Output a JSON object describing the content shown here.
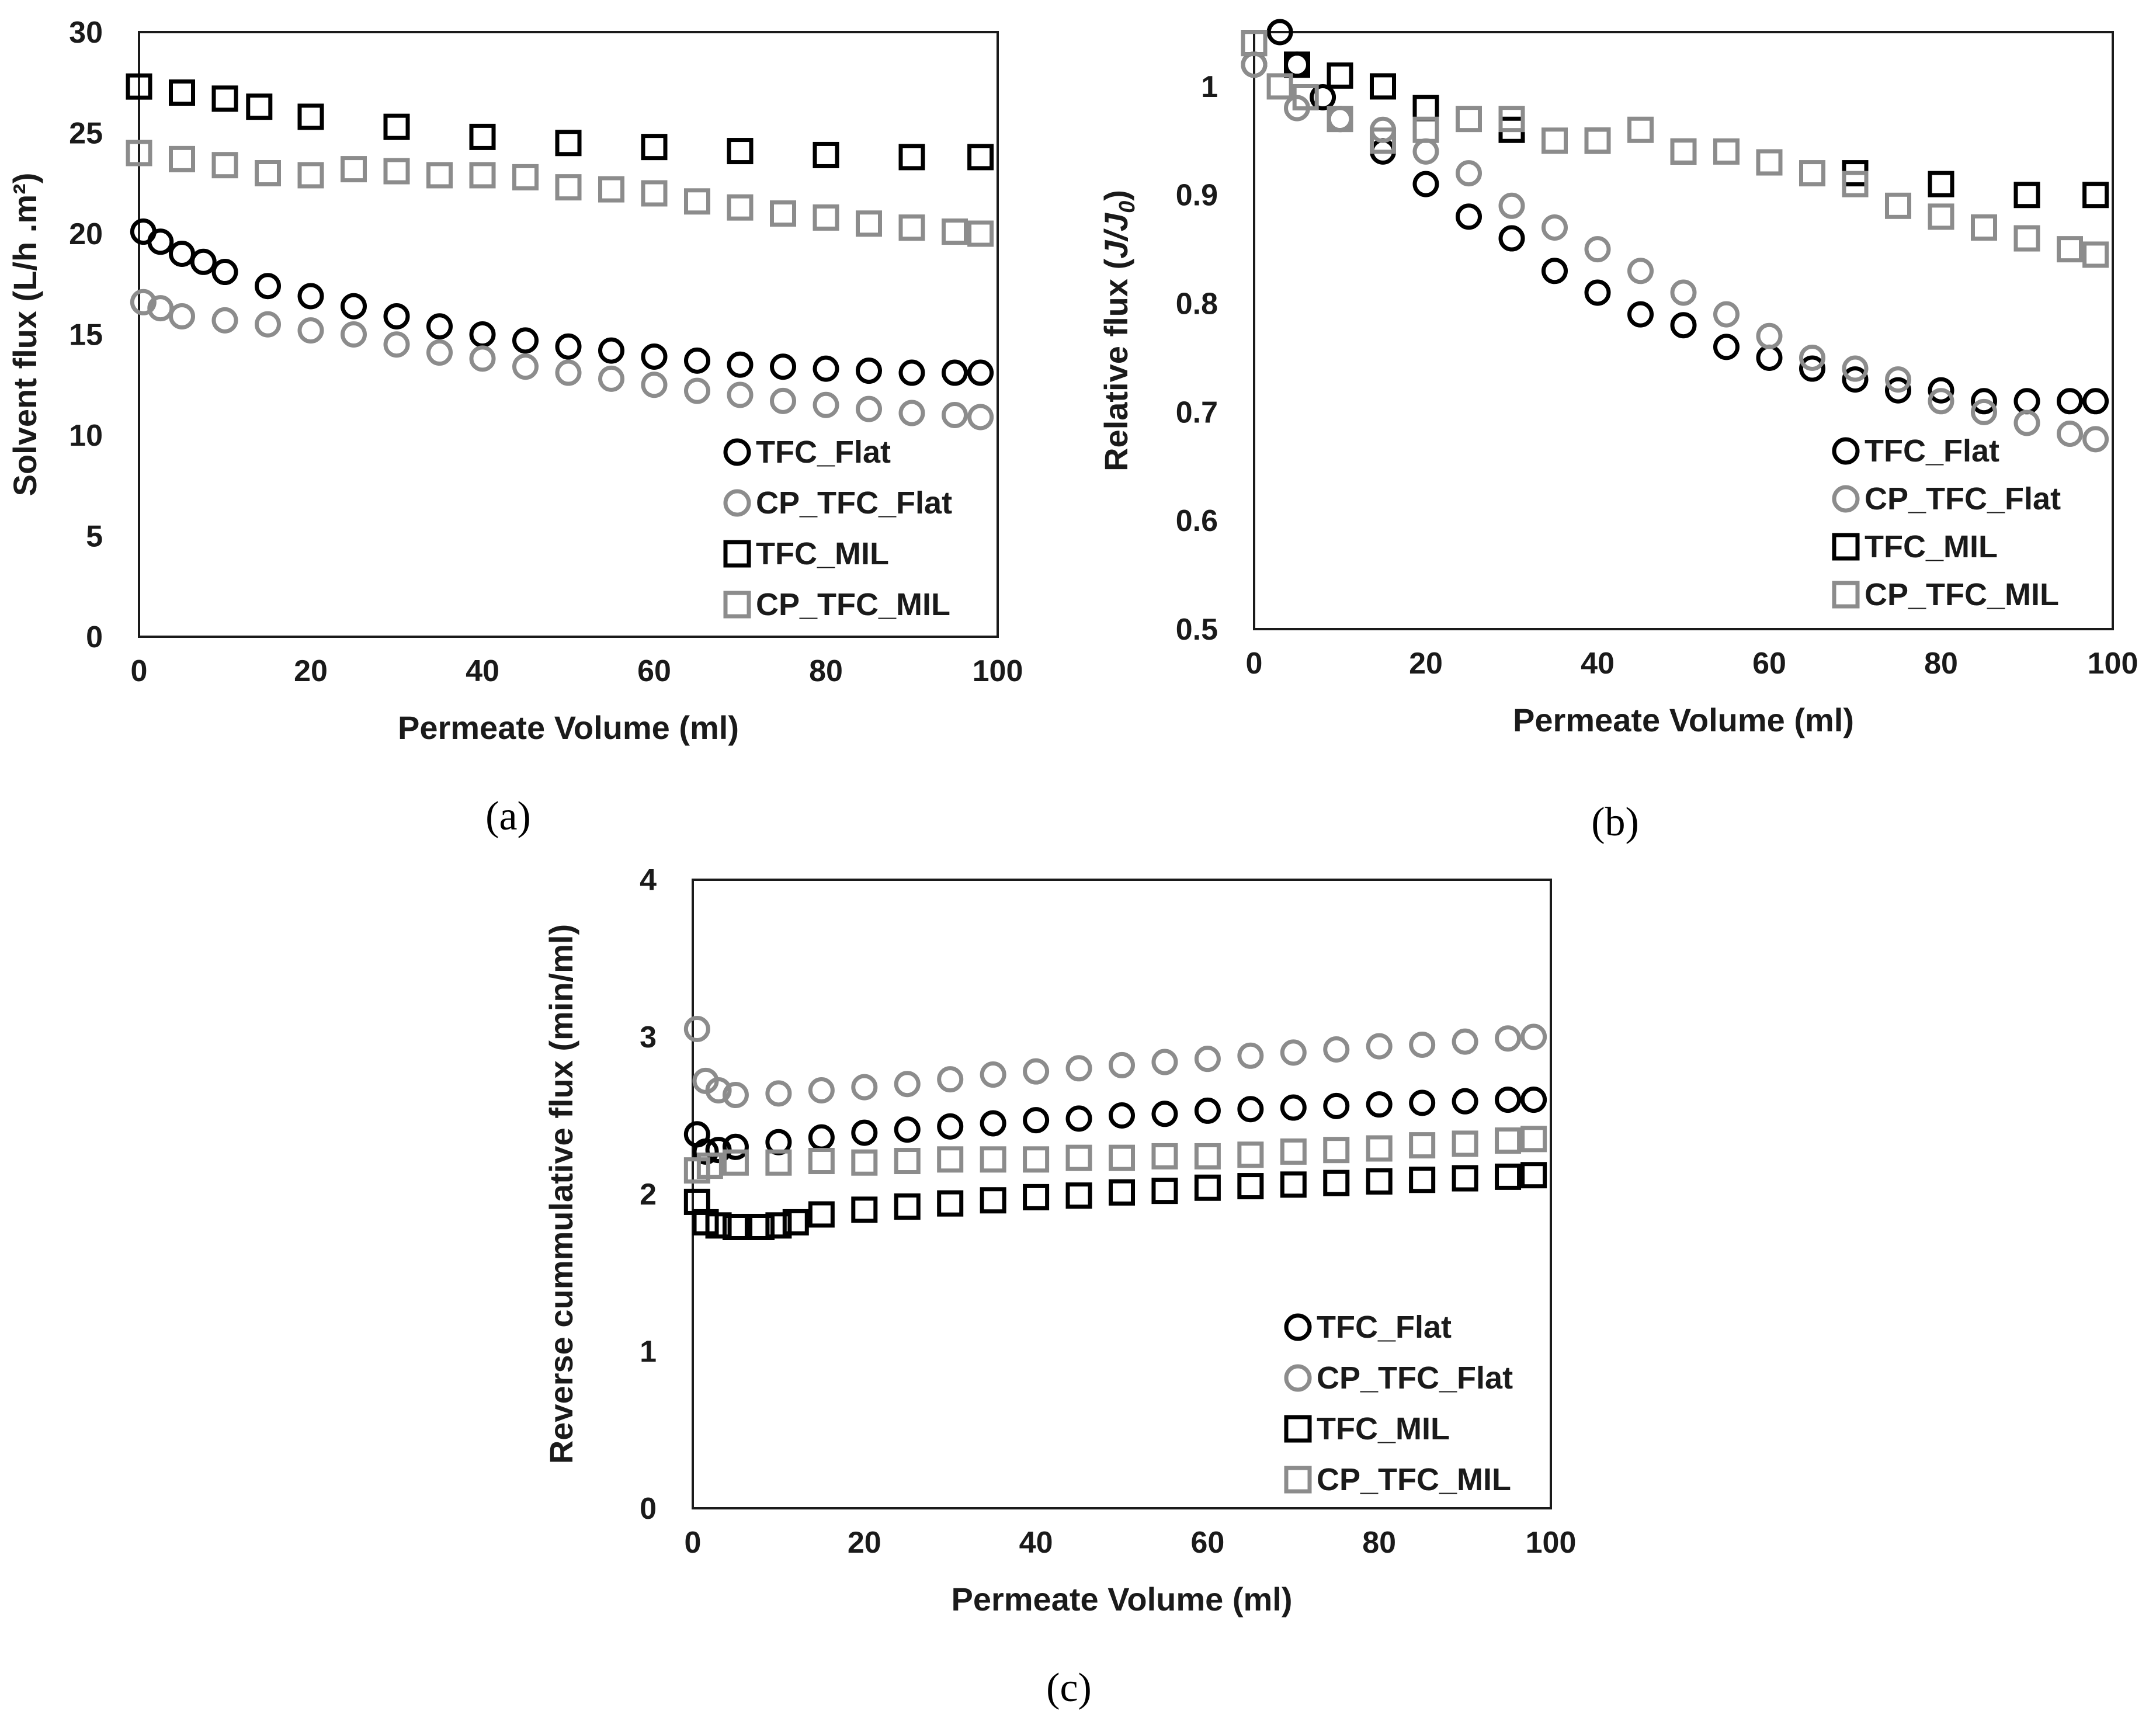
{
  "chart_data": [
    {
      "type": "scatter",
      "panel": "(a)",
      "xlabel": "Permeate Volume (ml)",
      "ylabel": "Solvent flux (L/h .m²)",
      "xlim": [
        0,
        100
      ],
      "ylim": [
        0,
        30
      ],
      "xticks": [
        0,
        20,
        40,
        60,
        80,
        100
      ],
      "yticks": [
        0,
        5,
        10,
        15,
        20,
        25,
        30
      ],
      "grid": false,
      "legend_position": "bottom-right",
      "series": [
        {
          "name": "TFC_Flat",
          "marker": "circle",
          "color": "#000000",
          "x": [
            0.5,
            2.5,
            5,
            7.5,
            10,
            15,
            20,
            25,
            30,
            35,
            40,
            45,
            50,
            55,
            60,
            65,
            70,
            75,
            80,
            85,
            90,
            95,
            98
          ],
          "y": [
            20.1,
            19.6,
            19.0,
            18.6,
            18.1,
            17.4,
            16.9,
            16.4,
            15.9,
            15.4,
            15.0,
            14.7,
            14.4,
            14.2,
            13.9,
            13.7,
            13.5,
            13.4,
            13.3,
            13.2,
            13.1,
            13.1,
            13.1
          ]
        },
        {
          "name": "CP_TFC_Flat",
          "marker": "circle",
          "color": "#8c8c8c",
          "x": [
            0.5,
            2.5,
            5,
            10,
            15,
            20,
            25,
            30,
            35,
            40,
            45,
            50,
            55,
            60,
            65,
            70,
            75,
            80,
            85,
            90,
            95,
            98
          ],
          "y": [
            16.6,
            16.3,
            15.9,
            15.7,
            15.5,
            15.2,
            15.0,
            14.5,
            14.1,
            13.8,
            13.4,
            13.1,
            12.8,
            12.5,
            12.2,
            12.0,
            11.7,
            11.5,
            11.3,
            11.1,
            11.0,
            10.9
          ]
        },
        {
          "name": "TFC_MIL",
          "marker": "square",
          "color": "#000000",
          "x": [
            0,
            5,
            10,
            14,
            20,
            30,
            40,
            50,
            60,
            70,
            80,
            90,
            98
          ],
          "y": [
            27.3,
            27.0,
            26.7,
            26.3,
            25.8,
            25.3,
            24.8,
            24.5,
            24.3,
            24.1,
            23.9,
            23.8,
            23.8
          ]
        },
        {
          "name": "CP_TFC_MIL",
          "marker": "square",
          "color": "#8c8c8c",
          "x": [
            0,
            5,
            10,
            15,
            20,
            25,
            30,
            35,
            40,
            45,
            50,
            55,
            60,
            65,
            70,
            75,
            80,
            85,
            90,
            95,
            98
          ],
          "y": [
            24.0,
            23.7,
            23.4,
            23.0,
            22.9,
            23.2,
            23.1,
            22.9,
            22.9,
            22.8,
            22.3,
            22.2,
            22.0,
            21.6,
            21.3,
            21.0,
            20.8,
            20.5,
            20.3,
            20.1,
            20.0
          ]
        }
      ]
    },
    {
      "type": "scatter",
      "panel": "(b)",
      "xlabel": "Permeate Volume (ml)",
      "ylabel_prefix": "Relative flux (",
      "ylabel_j": "J/J",
      "ylabel_sub": "0",
      "ylabel_suffix": ")",
      "xlim": [
        0,
        100
      ],
      "ylim": [
        0.5,
        1.05
      ],
      "xticks": [
        0,
        20,
        40,
        60,
        80,
        100
      ],
      "yticks": [
        0.5,
        0.6,
        0.7,
        0.8,
        0.9,
        1
      ],
      "ytick_labels": [
        "0.5",
        "0.6",
        "0.7",
        "0.8",
        "0.9",
        "1"
      ],
      "grid": false,
      "legend_position": "bottom-right",
      "series": [
        {
          "name": "TFC_Flat",
          "marker": "circle",
          "color": "#000000",
          "x": [
            0,
            3,
            5,
            8,
            10,
            15,
            20,
            25,
            30,
            35,
            40,
            45,
            50,
            55,
            60,
            65,
            70,
            75,
            80,
            85,
            90,
            95,
            98
          ],
          "y": [
            1.02,
            1.05,
            1.02,
            0.99,
            0.97,
            0.94,
            0.91,
            0.88,
            0.86,
            0.83,
            0.81,
            0.79,
            0.78,
            0.76,
            0.75,
            0.74,
            0.73,
            0.72,
            0.72,
            0.71,
            0.71,
            0.71,
            0.71
          ]
        },
        {
          "name": "CP_TFC_Flat",
          "marker": "circle",
          "color": "#8c8c8c",
          "x": [
            0,
            5,
            10,
            15,
            20,
            25,
            30,
            35,
            40,
            45,
            50,
            55,
            60,
            65,
            70,
            75,
            80,
            85,
            90,
            95,
            98
          ],
          "y": [
            1.02,
            0.98,
            0.97,
            0.96,
            0.94,
            0.92,
            0.89,
            0.87,
            0.85,
            0.83,
            0.81,
            0.79,
            0.77,
            0.75,
            0.74,
            0.73,
            0.71,
            0.7,
            0.69,
            0.68,
            0.675
          ]
        },
        {
          "name": "TFC_MIL",
          "marker": "square",
          "color": "#000000",
          "x": [
            0,
            5,
            10,
            15,
            20,
            30,
            40,
            50,
            60,
            70,
            80,
            90,
            98
          ],
          "y": [
            1.04,
            1.02,
            1.01,
            1.0,
            0.98,
            0.96,
            0.95,
            0.94,
            0.93,
            0.92,
            0.91,
            0.9,
            0.9
          ]
        },
        {
          "name": "CP_TFC_MIL",
          "marker": "square",
          "color": "#8c8c8c",
          "x": [
            0,
            3,
            6,
            10,
            15,
            20,
            25,
            30,
            35,
            40,
            45,
            50,
            55,
            60,
            65,
            70,
            75,
            80,
            85,
            90,
            95,
            98
          ],
          "y": [
            1.04,
            1.0,
            0.99,
            0.97,
            0.95,
            0.96,
            0.97,
            0.97,
            0.95,
            0.95,
            0.96,
            0.94,
            0.94,
            0.93,
            0.92,
            0.91,
            0.89,
            0.88,
            0.87,
            0.86,
            0.85,
            0.845
          ]
        }
      ]
    },
    {
      "type": "scatter",
      "panel": "(c)",
      "xlabel": "Permeate Volume (ml)",
      "ylabel": "Reverse cummulative flux (min/ml)",
      "xlim": [
        0,
        100
      ],
      "ylim": [
        0,
        4
      ],
      "xticks": [
        0,
        20,
        40,
        60,
        80,
        100
      ],
      "yticks": [
        0,
        1,
        2,
        3,
        4
      ],
      "grid": false,
      "legend_position": "bottom-right",
      "series": [
        {
          "name": "TFC_Flat",
          "marker": "circle",
          "color": "#000000",
          "x": [
            0.5,
            1.5,
            3,
            5,
            10,
            15,
            20,
            25,
            30,
            35,
            40,
            45,
            50,
            55,
            60,
            65,
            70,
            75,
            80,
            85,
            90,
            95,
            98
          ],
          "y": [
            2.38,
            2.27,
            2.28,
            2.3,
            2.33,
            2.36,
            2.39,
            2.41,
            2.43,
            2.45,
            2.47,
            2.48,
            2.5,
            2.51,
            2.53,
            2.54,
            2.55,
            2.56,
            2.57,
            2.58,
            2.59,
            2.6,
            2.6
          ]
        },
        {
          "name": "CP_TFC_Flat",
          "marker": "circle",
          "color": "#8c8c8c",
          "x": [
            0.5,
            1.5,
            3,
            5,
            10,
            15,
            20,
            25,
            30,
            35,
            40,
            45,
            50,
            55,
            60,
            65,
            70,
            75,
            80,
            85,
            90,
            95,
            98
          ],
          "y": [
            3.05,
            2.72,
            2.66,
            2.63,
            2.64,
            2.66,
            2.68,
            2.7,
            2.73,
            2.76,
            2.78,
            2.8,
            2.82,
            2.84,
            2.86,
            2.88,
            2.9,
            2.92,
            2.94,
            2.95,
            2.97,
            2.99,
            3.0
          ]
        },
        {
          "name": "TFC_MIL",
          "marker": "square",
          "color": "#000000",
          "x": [
            0.5,
            1.5,
            3,
            5,
            8,
            10,
            12,
            15,
            20,
            25,
            30,
            35,
            40,
            45,
            50,
            55,
            60,
            65,
            70,
            75,
            80,
            85,
            90,
            95,
            98
          ],
          "y": [
            1.95,
            1.82,
            1.8,
            1.79,
            1.79,
            1.8,
            1.82,
            1.87,
            1.9,
            1.92,
            1.94,
            1.96,
            1.98,
            1.99,
            2.01,
            2.02,
            2.04,
            2.05,
            2.06,
            2.07,
            2.08,
            2.09,
            2.1,
            2.11,
            2.12
          ]
        },
        {
          "name": "CP_TFC_MIL",
          "marker": "square",
          "color": "#8c8c8c",
          "x": [
            0.5,
            2,
            5,
            10,
            15,
            20,
            25,
            30,
            35,
            40,
            45,
            50,
            55,
            60,
            65,
            70,
            75,
            80,
            85,
            90,
            95,
            98
          ],
          "y": [
            2.15,
            2.18,
            2.2,
            2.2,
            2.21,
            2.2,
            2.21,
            2.22,
            2.22,
            2.22,
            2.23,
            2.23,
            2.24,
            2.24,
            2.25,
            2.27,
            2.28,
            2.29,
            2.31,
            2.32,
            2.34,
            2.35
          ]
        }
      ]
    }
  ]
}
